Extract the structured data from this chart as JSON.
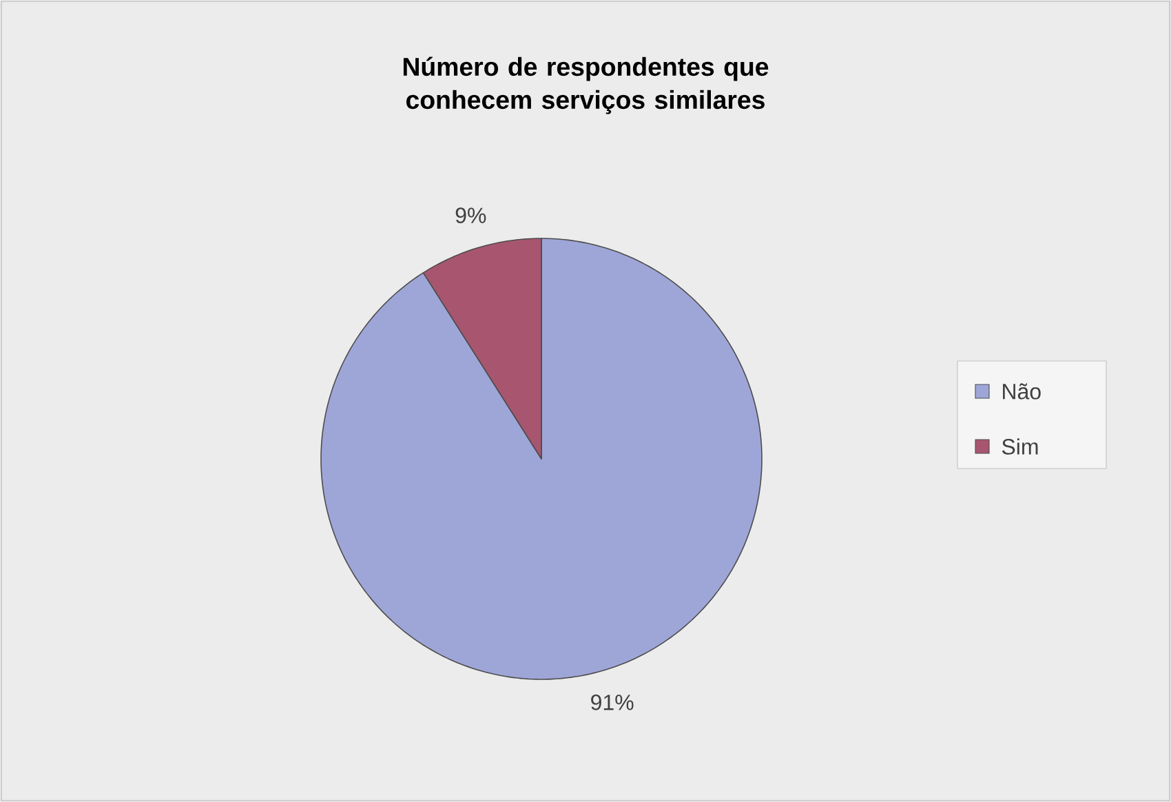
{
  "chart_data": {
    "type": "pie",
    "title": "Número de respondentes que conhecem serviços similares",
    "categories": [
      "Não",
      "Sim"
    ],
    "values": [
      91,
      9
    ],
    "colors": [
      "#9ea6d8",
      "#a85670"
    ],
    "value_labels": [
      "91%",
      "9%"
    ],
    "legend": "right"
  }
}
